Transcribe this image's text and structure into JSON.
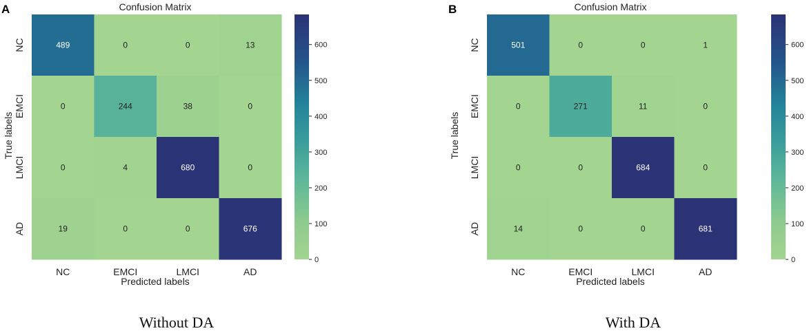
{
  "chart_data": [
    {
      "type": "heatmap",
      "panel_label": "A",
      "title": "Confusion Matrix",
      "xlabel": "Predicted labels",
      "ylabel": "True labels",
      "caption": "Without DA",
      "x_categories": [
        "NC",
        "EMCI",
        "LMCI",
        "AD"
      ],
      "y_categories": [
        "NC",
        "EMCI",
        "LMCI",
        "AD"
      ],
      "values": [
        [
          489,
          0,
          0,
          13
        ],
        [
          0,
          244,
          38,
          0
        ],
        [
          0,
          4,
          680,
          0
        ],
        [
          19,
          0,
          0,
          676
        ]
      ],
      "colorbar": {
        "min": 0,
        "max": 684,
        "ticks": [
          0,
          100,
          200,
          300,
          400,
          500,
          600
        ]
      }
    },
    {
      "type": "heatmap",
      "panel_label": "B",
      "title": "Confusion Matrix",
      "xlabel": "Predicted labels",
      "ylabel": "True labels",
      "caption": "With DA",
      "x_categories": [
        "NC",
        "EMCI",
        "LMCI",
        "AD"
      ],
      "y_categories": [
        "NC",
        "EMCI",
        "LMCI",
        "AD"
      ],
      "values": [
        [
          501,
          0,
          0,
          1
        ],
        [
          0,
          271,
          11,
          0
        ],
        [
          0,
          0,
          684,
          0
        ],
        [
          14,
          0,
          0,
          681
        ]
      ],
      "colorbar": {
        "min": 0,
        "max": 684,
        "ticks": [
          0,
          100,
          200,
          300,
          400,
          500,
          600
        ]
      }
    }
  ],
  "colors": {
    "low": "#a3d490",
    "mid": "#3a9d9b",
    "high": "#2b3276",
    "text_dark": "#222222",
    "text_light": "#ffffff"
  }
}
